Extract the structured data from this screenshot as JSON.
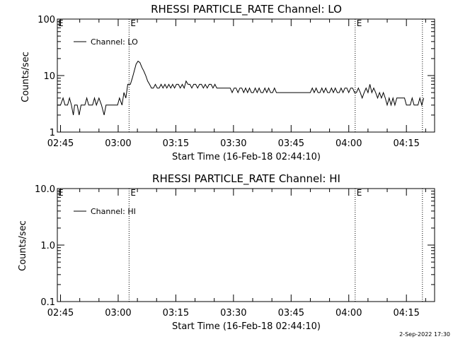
{
  "chart_data": [
    {
      "type": "line",
      "title": "RHESSI PARTICLE_RATE Channel: LO",
      "xlabel": "Start Time (16-Feb-18 02:44:10)",
      "ylabel": "Counts/sec",
      "yscale": "log",
      "ylim": [
        1,
        100
      ],
      "xlim": [
        "02:44:10",
        "04:22:20"
      ],
      "xticks": [
        "02:45",
        "03:00",
        "03:15",
        "03:30",
        "03:45",
        "04:00",
        "04:15"
      ],
      "yticks": [
        "1",
        "10",
        "100"
      ],
      "legend": {
        "position": "top-left",
        "entries": [
          "Channel: LO"
        ]
      },
      "vlines": [
        {
          "time": "03:02:50",
          "label": "E"
        },
        {
          "time": "04:01:40",
          "label": "E"
        },
        {
          "time": "04:19:10",
          "label": ""
        }
      ],
      "series": [
        {
          "name": "Channel: LO",
          "points": [
            [
              "02:44:10",
              3
            ],
            [
              "02:45:00",
              3
            ],
            [
              "02:45:40",
              4
            ],
            [
              "02:46:10",
              3
            ],
            [
              "02:46:50",
              3
            ],
            [
              "02:47:20",
              4
            ],
            [
              "02:47:50",
              3
            ],
            [
              "02:48:20",
              2
            ],
            [
              "02:48:40",
              3
            ],
            [
              "02:49:20",
              3
            ],
            [
              "02:49:50",
              2
            ],
            [
              "02:50:20",
              3
            ],
            [
              "02:51:20",
              3
            ],
            [
              "02:51:50",
              4
            ],
            [
              "02:52:20",
              3
            ],
            [
              "02:53:20",
              3
            ],
            [
              "02:53:50",
              4
            ],
            [
              "02:54:20",
              3
            ],
            [
              "02:55:00",
              4
            ],
            [
              "02:55:40",
              3
            ],
            [
              "02:56:20",
              2
            ],
            [
              "02:56:50",
              3
            ],
            [
              "02:58:00",
              3
            ],
            [
              "02:59:00",
              3
            ],
            [
              "02:59:50",
              3
            ],
            [
              "03:00:20",
              4
            ],
            [
              "03:01:00",
              3
            ],
            [
              "03:01:30",
              5
            ],
            [
              "03:02:00",
              4
            ],
            [
              "03:02:30",
              7
            ],
            [
              "03:03:10",
              7
            ],
            [
              "03:03:40",
              9
            ],
            [
              "03:04:10",
              12
            ],
            [
              "03:04:40",
              16
            ],
            [
              "03:05:10",
              18
            ],
            [
              "03:05:40",
              17
            ],
            [
              "03:06:10",
              14
            ],
            [
              "03:06:40",
              12
            ],
            [
              "03:07:10",
              10
            ],
            [
              "03:07:40",
              8
            ],
            [
              "03:08:10",
              7
            ],
            [
              "03:08:40",
              6
            ],
            [
              "03:09:10",
              6
            ],
            [
              "03:09:40",
              7
            ],
            [
              "03:10:10",
              6
            ],
            [
              "03:10:40",
              6
            ],
            [
              "03:11:10",
              7
            ],
            [
              "03:11:40",
              6
            ],
            [
              "03:12:10",
              7
            ],
            [
              "03:12:40",
              6
            ],
            [
              "03:13:10",
              7
            ],
            [
              "03:13:40",
              6
            ],
            [
              "03:14:10",
              7
            ],
            [
              "03:14:40",
              6
            ],
            [
              "03:15:10",
              7
            ],
            [
              "03:15:40",
              7
            ],
            [
              "03:16:10",
              6
            ],
            [
              "03:16:40",
              7
            ],
            [
              "03:17:10",
              6
            ],
            [
              "03:17:40",
              8
            ],
            [
              "03:18:10",
              7
            ],
            [
              "03:18:40",
              7
            ],
            [
              "03:19:10",
              6
            ],
            [
              "03:19:40",
              7
            ],
            [
              "03:20:10",
              7
            ],
            [
              "03:20:40",
              6
            ],
            [
              "03:21:10",
              7
            ],
            [
              "03:21:40",
              7
            ],
            [
              "03:22:10",
              6
            ],
            [
              "03:22:40",
              7
            ],
            [
              "03:23:10",
              6
            ],
            [
              "03:23:40",
              7
            ],
            [
              "03:24:10",
              7
            ],
            [
              "03:24:40",
              6
            ],
            [
              "03:25:10",
              7
            ],
            [
              "03:25:40",
              6
            ],
            [
              "03:26:10",
              6
            ],
            [
              "03:26:40",
              6
            ],
            [
              "03:27:10",
              6
            ],
            [
              "03:27:40",
              6
            ],
            [
              "03:28:10",
              6
            ],
            [
              "03:28:40",
              6
            ],
            [
              "03:29:10",
              6
            ],
            [
              "03:29:40",
              5
            ],
            [
              "03:30:10",
              6
            ],
            [
              "03:30:40",
              6
            ],
            [
              "03:31:10",
              5
            ],
            [
              "03:31:40",
              6
            ],
            [
              "03:32:10",
              6
            ],
            [
              "03:32:40",
              5
            ],
            [
              "03:33:10",
              6
            ],
            [
              "03:33:40",
              5
            ],
            [
              "03:34:10",
              6
            ],
            [
              "03:34:40",
              5
            ],
            [
              "03:35:10",
              5
            ],
            [
              "03:35:40",
              6
            ],
            [
              "03:36:10",
              5
            ],
            [
              "03:36:40",
              6
            ],
            [
              "03:37:10",
              5
            ],
            [
              "03:37:40",
              5
            ],
            [
              "03:38:10",
              6
            ],
            [
              "03:38:40",
              5
            ],
            [
              "03:39:10",
              6
            ],
            [
              "03:39:40",
              5
            ],
            [
              "03:40:10",
              5
            ],
            [
              "03:40:40",
              6
            ],
            [
              "03:41:10",
              5
            ],
            [
              "03:41:40",
              5
            ],
            [
              "03:42:10",
              5
            ],
            [
              "03:43:00",
              5
            ],
            [
              "03:44:00",
              5
            ],
            [
              "03:45:00",
              5
            ],
            [
              "03:46:00",
              5
            ],
            [
              "03:47:00",
              5
            ],
            [
              "03:48:00",
              5
            ],
            [
              "03:49:00",
              5
            ],
            [
              "03:50:00",
              5
            ],
            [
              "03:50:30",
              6
            ],
            [
              "03:51:00",
              5
            ],
            [
              "03:51:30",
              6
            ],
            [
              "03:52:00",
              5
            ],
            [
              "03:52:30",
              5
            ],
            [
              "03:53:00",
              6
            ],
            [
              "03:53:30",
              5
            ],
            [
              "03:54:00",
              6
            ],
            [
              "03:54:30",
              5
            ],
            [
              "03:55:00",
              5
            ],
            [
              "03:55:30",
              6
            ],
            [
              "03:56:00",
              5
            ],
            [
              "03:56:30",
              6
            ],
            [
              "03:57:00",
              5
            ],
            [
              "03:57:30",
              5
            ],
            [
              "03:58:00",
              6
            ],
            [
              "03:58:30",
              5
            ],
            [
              "03:59:00",
              6
            ],
            [
              "03:59:30",
              6
            ],
            [
              "04:00:00",
              5
            ],
            [
              "04:00:30",
              6
            ],
            [
              "04:01:00",
              6
            ],
            [
              "04:01:30",
              5
            ],
            [
              "04:02:00",
              5
            ],
            [
              "04:02:30",
              6
            ],
            [
              "04:03:00",
              5
            ],
            [
              "04:03:30",
              4
            ],
            [
              "04:04:00",
              5
            ],
            [
              "04:04:30",
              6
            ],
            [
              "04:05:00",
              5
            ],
            [
              "04:05:30",
              7
            ],
            [
              "04:06:00",
              5
            ],
            [
              "04:06:30",
              6
            ],
            [
              "04:07:00",
              5
            ],
            [
              "04:07:30",
              4
            ],
            [
              "04:08:00",
              5
            ],
            [
              "04:08:30",
              4
            ],
            [
              "04:09:00",
              5
            ],
            [
              "04:09:30",
              4
            ],
            [
              "04:10:00",
              3
            ],
            [
              "04:10:30",
              4
            ],
            [
              "04:11:00",
              3
            ],
            [
              "04:11:30",
              4
            ],
            [
              "04:12:00",
              3
            ],
            [
              "04:12:30",
              4
            ],
            [
              "04:13:00",
              4
            ],
            [
              "04:13:30",
              4
            ],
            [
              "04:14:00",
              4
            ],
            [
              "04:14:30",
              4
            ],
            [
              "04:15:00",
              3
            ],
            [
              "04:15:30",
              3
            ],
            [
              "04:16:00",
              3
            ],
            [
              "04:16:30",
              4
            ],
            [
              "04:17:00",
              3
            ],
            [
              "04:17:30",
              3
            ],
            [
              "04:18:00",
              3
            ],
            [
              "04:18:30",
              4
            ],
            [
              "04:19:00",
              3
            ],
            [
              "04:19:30",
              4
            ]
          ]
        }
      ]
    },
    {
      "type": "line",
      "title": "RHESSI PARTICLE_RATE Channel: HI",
      "xlabel": "Start Time (16-Feb-18 02:44:10)",
      "ylabel": "Counts/sec",
      "yscale": "log",
      "ylim": [
        0.1,
        10
      ],
      "xlim": [
        "02:44:10",
        "04:22:20"
      ],
      "xticks": [
        "02:45",
        "03:00",
        "03:15",
        "03:30",
        "03:45",
        "04:00",
        "04:15"
      ],
      "yticks": [
        "0.1",
        "1.0",
        "10.0"
      ],
      "legend": {
        "position": "top-left",
        "entries": [
          "Channel: HI"
        ]
      },
      "vlines": [
        {
          "time": "03:02:50",
          "label": "E"
        },
        {
          "time": "04:01:40",
          "label": "E"
        },
        {
          "time": "04:19:10",
          "label": ""
        }
      ],
      "series": [
        {
          "name": "Channel: HI",
          "points": []
        }
      ]
    }
  ],
  "footer": {
    "date": "2-Sep-2022 17:30"
  }
}
